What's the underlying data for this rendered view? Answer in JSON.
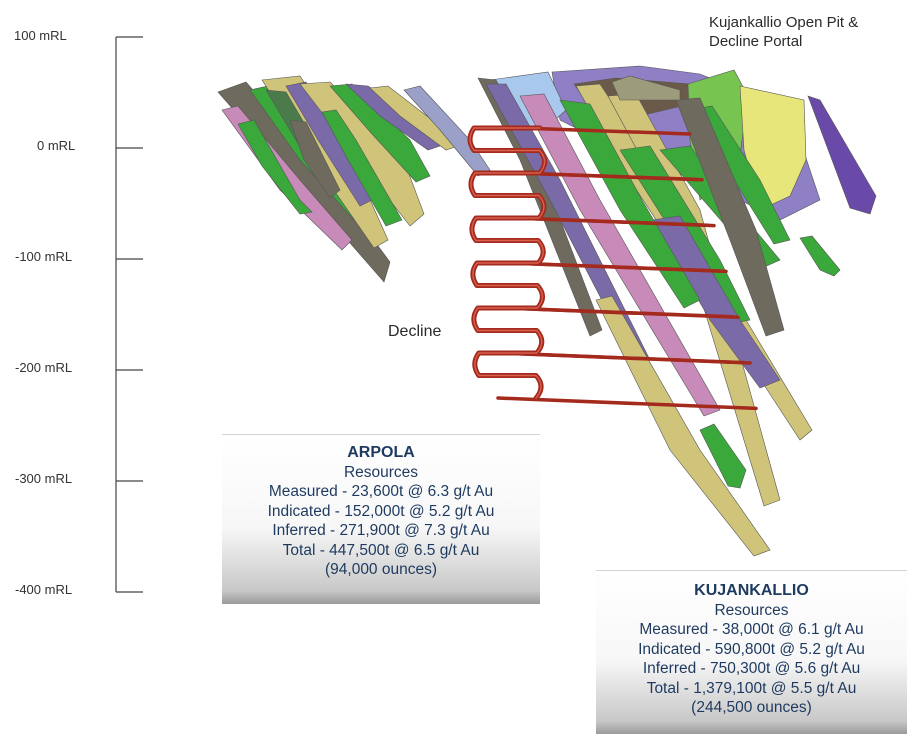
{
  "scale": {
    "labels": [
      "100 mRL",
      "0 mRL",
      "-100 mRL",
      "-200 mRL",
      "-300 mRL",
      "-400 mRL"
    ]
  },
  "callouts": {
    "open_pit_line1": "Kujankallio Open Pit &",
    "open_pit_line2": "Decline Portal",
    "decline": "Decline"
  },
  "arpola": {
    "title": "ARPOLA",
    "subtitle": "Resources",
    "measured": "Measured - 23,600t @ 6.3 g/t Au",
    "indicated": "Indicated - 152,000t @ 5.2 g/t Au",
    "inferred": "Inferred - 271,900t @ 7.3 g/t Au",
    "total": "Total - 447,500t @ 6.5 g/t Au",
    "ounces": "(94,000 ounces)"
  },
  "kujankallio": {
    "title": "KUJANKALLIO",
    "subtitle": "Resources",
    "measured": "Measured - 38,000t @ 6.1 g/t Au",
    "indicated": "Indicated - 590,800t @ 5.2 g/t Au",
    "inferred": "Inferred - 750,300t @ 5.6 g/t Au",
    "total": "Total - 1,379,100t @ 5.5 g/t Au",
    "ounces": "(244,500 ounces)"
  },
  "colors": {
    "decline": "#a52a1e",
    "ore_yellow": "#cfc47a",
    "ore_green": "#3aa83a",
    "ore_purple": "#7a6aa8",
    "ore_pink": "#c88ab8",
    "ore_grey": "#6e6a5e",
    "scale_line": "#444444",
    "box_text": "#1e3a5f"
  }
}
